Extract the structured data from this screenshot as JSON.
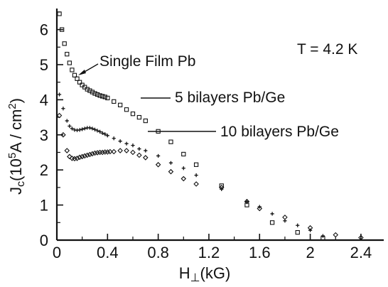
{
  "chart_data": {
    "type": "scatter",
    "title": "",
    "xlabel": {
      "main": "H",
      "sub": "⊥",
      "tail": "(kG)"
    },
    "ylabel": {
      "main": "J",
      "sub": "c",
      "mid": "(10",
      "sup": "5",
      "tail": "A / cm",
      "sup2": "2",
      "end": ")"
    },
    "xlim": [
      0,
      2.58
    ],
    "ylim": [
      0,
      6.6
    ],
    "x_ticks": [
      "0",
      "0.4",
      "0.8",
      "1.2",
      "1.6",
      "2",
      "2.4"
    ],
    "y_ticks": [
      "0",
      "1",
      "2",
      "3",
      "4",
      "5",
      "6"
    ],
    "x_tick_values": [
      0,
      0.4,
      0.8,
      1.2,
      1.6,
      2.0,
      2.4
    ],
    "y_tick_values": [
      0,
      1,
      2,
      3,
      4,
      5,
      6
    ],
    "grid": false,
    "annotations": {
      "temperature": "T = 4.2 K",
      "single": "Single Film Pb",
      "five": "5 bilayers Pb/Ge",
      "ten": "10 bilayers Pb/Ge"
    },
    "series": [
      {
        "name": "Single Film Pb",
        "marker": "square",
        "x": [
          0.02,
          0.04,
          0.06,
          0.08,
          0.1,
          0.12,
          0.14,
          0.16,
          0.18,
          0.2,
          0.22,
          0.24,
          0.26,
          0.28,
          0.3,
          0.32,
          0.34,
          0.36,
          0.38,
          0.4,
          0.45,
          0.5,
          0.55,
          0.6,
          0.65,
          0.7,
          0.8,
          0.9,
          1.0,
          1.1,
          1.3,
          1.5,
          1.7,
          1.9,
          2.1
        ],
        "values": [
          6.45,
          6.0,
          5.6,
          5.3,
          5.05,
          4.85,
          4.7,
          4.6,
          4.5,
          4.42,
          4.36,
          4.3,
          4.26,
          4.22,
          4.18,
          4.15,
          4.12,
          4.1,
          4.08,
          4.05,
          3.95,
          3.85,
          3.72,
          3.6,
          3.5,
          3.4,
          3.1,
          2.8,
          2.45,
          2.15,
          1.55,
          1.0,
          0.5,
          0.22,
          0.05
        ]
      },
      {
        "name": "5 bilayers Pb/Ge",
        "marker": "plus",
        "x": [
          0.02,
          0.05,
          0.08,
          0.1,
          0.12,
          0.14,
          0.16,
          0.18,
          0.2,
          0.22,
          0.24,
          0.26,
          0.28,
          0.3,
          0.32,
          0.34,
          0.36,
          0.38,
          0.4,
          0.45,
          0.5,
          0.55,
          0.6,
          0.65,
          0.7,
          0.8,
          0.9,
          1.0,
          1.1,
          1.3,
          1.5,
          1.6,
          1.7,
          1.8,
          1.9,
          2.0,
          2.1
        ],
        "values": [
          4.15,
          3.75,
          3.4,
          3.25,
          3.18,
          3.14,
          3.13,
          3.14,
          3.16,
          3.18,
          3.2,
          3.2,
          3.18,
          3.15,
          3.12,
          3.09,
          3.05,
          3.02,
          2.98,
          2.9,
          2.82,
          2.75,
          2.7,
          2.6,
          2.55,
          2.4,
          2.2,
          2.05,
          1.85,
          1.45,
          1.1,
          0.95,
          0.75,
          0.55,
          0.42,
          0.28,
          0.12
        ]
      },
      {
        "name": "10 bilayers Pb/Ge",
        "marker": "diamond",
        "x": [
          0.02,
          0.05,
          0.08,
          0.1,
          0.12,
          0.14,
          0.16,
          0.18,
          0.2,
          0.22,
          0.24,
          0.26,
          0.28,
          0.3,
          0.32,
          0.34,
          0.36,
          0.38,
          0.4,
          0.42,
          0.45,
          0.5,
          0.55,
          0.6,
          0.65,
          0.7,
          0.8,
          0.9,
          1.0,
          1.1,
          1.3,
          1.5,
          1.6,
          1.8,
          2.0,
          2.2,
          2.4
        ],
        "values": [
          3.55,
          3.0,
          2.55,
          2.38,
          2.33,
          2.32,
          2.33,
          2.36,
          2.38,
          2.4,
          2.42,
          2.44,
          2.46,
          2.48,
          2.49,
          2.5,
          2.5,
          2.51,
          2.51,
          2.52,
          2.52,
          2.55,
          2.55,
          2.5,
          2.42,
          2.35,
          2.15,
          1.95,
          1.75,
          1.6,
          1.5,
          1.1,
          0.9,
          0.65,
          0.35,
          0.15,
          0.07
        ]
      }
    ]
  }
}
